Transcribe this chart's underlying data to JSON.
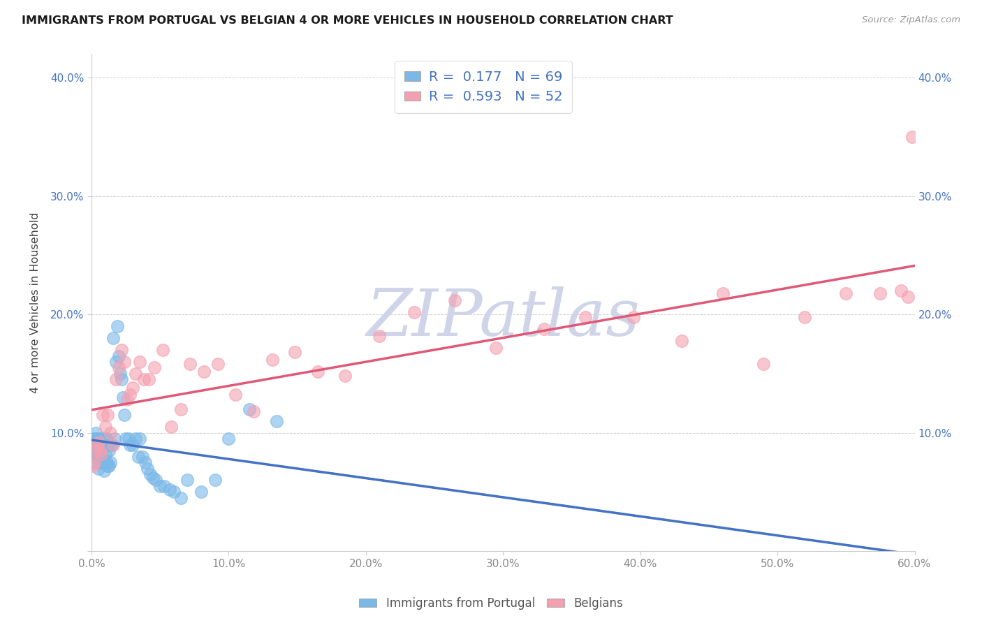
{
  "title": "IMMIGRANTS FROM PORTUGAL VS BELGIAN 4 OR MORE VEHICLES IN HOUSEHOLD CORRELATION CHART",
  "source": "Source: ZipAtlas.com",
  "ylabel": "4 or more Vehicles in Household",
  "xlim": [
    0.0,
    0.6
  ],
  "ylim": [
    0.0,
    0.42
  ],
  "xticks": [
    0.0,
    0.1,
    0.2,
    0.3,
    0.4,
    0.5,
    0.6
  ],
  "yticks": [
    0.0,
    0.1,
    0.2,
    0.3,
    0.4
  ],
  "xticklabels": [
    "0.0%",
    "10.0%",
    "20.0%",
    "30.0%",
    "40.0%",
    "50.0%",
    "60.0%"
  ],
  "yticklabels_left": [
    "",
    "10.0%",
    "20.0%",
    "30.0%",
    "40.0%"
  ],
  "yticklabels_right": [
    "",
    "10.0%",
    "20.0%",
    "30.0%",
    "40.0%"
  ],
  "R_portugal": 0.177,
  "N_portugal": 69,
  "R_belgians": 0.593,
  "N_belgians": 52,
  "color_portugal": "#7ab8e8",
  "color_belgians": "#f4a0b0",
  "trendline_portugal_color": "#4472c4",
  "trendline_belgians_color": "#e05878",
  "legend_label_portugal": "Immigrants from Portugal",
  "legend_label_belgians": "Belgians",
  "legend_text_color": "#4472c4",
  "tick_color_y": "#4472c4",
  "tick_color_x": "#888888",
  "watermark_text": "ZIPatlas",
  "watermark_color": "#d0d4e8",
  "portugal_x": [
    0.001,
    0.001,
    0.002,
    0.002,
    0.003,
    0.003,
    0.003,
    0.004,
    0.004,
    0.005,
    0.005,
    0.005,
    0.006,
    0.006,
    0.006,
    0.007,
    0.007,
    0.007,
    0.007,
    0.008,
    0.008,
    0.008,
    0.009,
    0.009,
    0.01,
    0.01,
    0.01,
    0.011,
    0.011,
    0.012,
    0.012,
    0.013,
    0.013,
    0.014,
    0.014,
    0.015,
    0.016,
    0.017,
    0.018,
    0.019,
    0.02,
    0.021,
    0.022,
    0.023,
    0.024,
    0.025,
    0.027,
    0.028,
    0.03,
    0.032,
    0.034,
    0.035,
    0.037,
    0.039,
    0.041,
    0.043,
    0.045,
    0.047,
    0.05,
    0.053,
    0.057,
    0.06,
    0.065,
    0.07,
    0.08,
    0.09,
    0.1,
    0.115,
    0.135
  ],
  "portugal_y": [
    0.095,
    0.085,
    0.09,
    0.075,
    0.1,
    0.08,
    0.095,
    0.082,
    0.095,
    0.088,
    0.07,
    0.095,
    0.085,
    0.075,
    0.092,
    0.075,
    0.09,
    0.08,
    0.095,
    0.075,
    0.088,
    0.095,
    0.078,
    0.068,
    0.095,
    0.082,
    0.095,
    0.075,
    0.095,
    0.072,
    0.09,
    0.072,
    0.085,
    0.075,
    0.09,
    0.09,
    0.18,
    0.095,
    0.16,
    0.19,
    0.165,
    0.15,
    0.145,
    0.13,
    0.115,
    0.095,
    0.095,
    0.09,
    0.09,
    0.095,
    0.08,
    0.095,
    0.08,
    0.075,
    0.07,
    0.065,
    0.062,
    0.06,
    0.055,
    0.055,
    0.052,
    0.05,
    0.045,
    0.06,
    0.05,
    0.06,
    0.095,
    0.12,
    0.11
  ],
  "belgians_x": [
    0.001,
    0.002,
    0.003,
    0.004,
    0.005,
    0.006,
    0.007,
    0.008,
    0.01,
    0.012,
    0.014,
    0.016,
    0.018,
    0.02,
    0.022,
    0.024,
    0.026,
    0.028,
    0.03,
    0.032,
    0.035,
    0.038,
    0.042,
    0.046,
    0.052,
    0.058,
    0.065,
    0.072,
    0.082,
    0.092,
    0.105,
    0.118,
    0.132,
    0.148,
    0.165,
    0.185,
    0.21,
    0.235,
    0.265,
    0.295,
    0.33,
    0.36,
    0.395,
    0.43,
    0.46,
    0.49,
    0.52,
    0.55,
    0.575,
    0.59,
    0.595,
    0.598
  ],
  "belgians_y": [
    0.072,
    0.075,
    0.085,
    0.09,
    0.092,
    0.085,
    0.082,
    0.115,
    0.105,
    0.115,
    0.1,
    0.09,
    0.145,
    0.155,
    0.17,
    0.16,
    0.128,
    0.132,
    0.138,
    0.15,
    0.16,
    0.145,
    0.145,
    0.155,
    0.17,
    0.105,
    0.12,
    0.158,
    0.152,
    0.158,
    0.132,
    0.118,
    0.162,
    0.168,
    0.152,
    0.148,
    0.182,
    0.202,
    0.212,
    0.172,
    0.188,
    0.198,
    0.198,
    0.178,
    0.218,
    0.158,
    0.198,
    0.218,
    0.218,
    0.22,
    0.215,
    0.35
  ]
}
